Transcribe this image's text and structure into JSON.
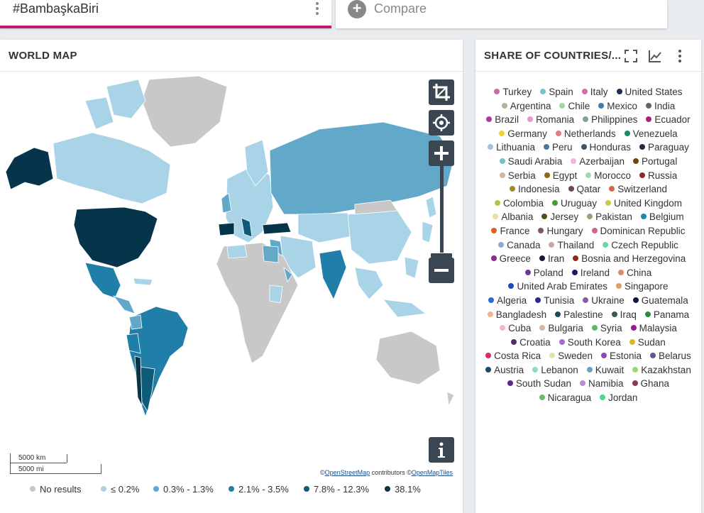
{
  "tabs": {
    "active_label": "#BambaşkaBiri",
    "compare_label": "Compare"
  },
  "map_card": {
    "title": "WORLD MAP",
    "scale_km": "5000 km",
    "scale_mi": "5000 mi",
    "attribution": {
      "osm": "OpenStreetMap",
      "contributors": " contributors ",
      "tiles": "OpenMapTiles"
    },
    "legend": [
      {
        "label": "No results",
        "color": "#c8c8c8"
      },
      {
        "label": "≤ 0.2%",
        "color": "#a9d3e6"
      },
      {
        "label": "0.3% - 1.3%",
        "color": "#62a9c9"
      },
      {
        "label": "2.1% - 3.5%",
        "color": "#1f7fa8"
      },
      {
        "label": "7.8% - 12.3%",
        "color": "#0d5b79"
      },
      {
        "label": "38.1%",
        "color": "#06344a"
      }
    ]
  },
  "share_card": {
    "title": "SHARE OF COUNTRIES/...",
    "countries": [
      {
        "name": "Turkey",
        "color": "#c76b9e"
      },
      {
        "name": "Spain",
        "color": "#7bbfd6"
      },
      {
        "name": "Italy",
        "color": "#d96ba6"
      },
      {
        "name": "United States",
        "color": "#1d2d52"
      },
      {
        "name": "Argentina",
        "color": "#a8b9a0"
      },
      {
        "name": "Chile",
        "color": "#a5d6a0"
      },
      {
        "name": "Mexico",
        "color": "#3d7aa8"
      },
      {
        "name": "India",
        "color": "#666666"
      },
      {
        "name": "Brazil",
        "color": "#b03aa0"
      },
      {
        "name": "Romania",
        "color": "#e29ac6"
      },
      {
        "name": "Philippines",
        "color": "#7ba39a"
      },
      {
        "name": "Ecuador",
        "color": "#a8247a"
      },
      {
        "name": "Germany",
        "color": "#f2d230"
      },
      {
        "name": "Netherlands",
        "color": "#e07c7c"
      },
      {
        "name": "Venezuela",
        "color": "#1f8a6a"
      },
      {
        "name": "Lithuania",
        "color": "#a7c0d8"
      },
      {
        "name": "Peru",
        "color": "#4f7596"
      },
      {
        "name": "Honduras",
        "color": "#3d5566"
      },
      {
        "name": "Paraguay",
        "color": "#2e2440"
      },
      {
        "name": "Saudi Arabia",
        "color": "#79c2c0"
      },
      {
        "name": "Azerbaijan",
        "color": "#f2b5d8"
      },
      {
        "name": "Portugal",
        "color": "#6b4a10"
      },
      {
        "name": "Serbia",
        "color": "#c9b89a"
      },
      {
        "name": "Egypt",
        "color": "#8a6a1a"
      },
      {
        "name": "Morocco",
        "color": "#9fd9b5"
      },
      {
        "name": "Russia",
        "color": "#8a2a2a"
      },
      {
        "name": "Indonesia",
        "color": "#a08a2a"
      },
      {
        "name": "Qatar",
        "color": "#6a4a5a"
      },
      {
        "name": "Switzerland",
        "color": "#d06a4a"
      },
      {
        "name": "Colombia",
        "color": "#b8c24a"
      },
      {
        "name": "Uruguay",
        "color": "#4a9a3a"
      },
      {
        "name": "United Kingdom",
        "color": "#c9c94a"
      },
      {
        "name": "Albania",
        "color": "#f2d9a8"
      },
      {
        "name": "Jersey",
        "color": "#5a4a1a"
      },
      {
        "name": "Pakistan",
        "color": "#9aa07a"
      },
      {
        "name": "Belgium",
        "color": "#1a8aa8"
      },
      {
        "name": "France",
        "color": "#d9602a"
      },
      {
        "name": "Hungary",
        "color": "#7a5a5a"
      },
      {
        "name": "Dominican Republic",
        "color": "#c96a8a"
      },
      {
        "name": "Canada",
        "color": "#8aaad9"
      },
      {
        "name": "Thailand",
        "color": "#c9a8a0"
      },
      {
        "name": "Czech Republic",
        "color": "#6ad9a0"
      },
      {
        "name": "Greece",
        "color": "#8a2a8a"
      },
      {
        "name": "Iran",
        "color": "#1a1a3a"
      },
      {
        "name": "Bosnia and Herzegovina",
        "color": "#8a2a1a"
      },
      {
        "name": "Poland",
        "color": "#6a3a9a"
      },
      {
        "name": "Ireland",
        "color": "#1a1a6a"
      },
      {
        "name": "China",
        "color": "#e08a6a"
      },
      {
        "name": "United Arab Emirates",
        "color": "#1a4ab8"
      },
      {
        "name": "Singapore",
        "color": "#d9a06a"
      },
      {
        "name": "Algeria",
        "color": "#2a6ad9"
      },
      {
        "name": "Tunisia",
        "color": "#2a2a8a"
      },
      {
        "name": "Ukraine",
        "color": "#8a5aa8"
      },
      {
        "name": "Guatemala",
        "color": "#0a1a3a"
      },
      {
        "name": "Bangladesh",
        "color": "#f2b58a"
      },
      {
        "name": "Palestine",
        "color": "#1a4a5a"
      },
      {
        "name": "Iraq",
        "color": "#3a5a4a"
      },
      {
        "name": "Panama",
        "color": "#2a8a3a"
      },
      {
        "name": "Cuba",
        "color": "#f2b5d0"
      },
      {
        "name": "Bulgaria",
        "color": "#d9b5a8"
      },
      {
        "name": "Syria",
        "color": "#5ab86a"
      },
      {
        "name": "Malaysia",
        "color": "#9a1a8a"
      },
      {
        "name": "Croatia",
        "color": "#5a2a6a"
      },
      {
        "name": "South Korea",
        "color": "#a86ad9"
      },
      {
        "name": "Sudan",
        "color": "#d9b82a"
      },
      {
        "name": "Costa Rica",
        "color": "#d92a6a"
      },
      {
        "name": "Sweden",
        "color": "#d9e8a8"
      },
      {
        "name": "Estonia",
        "color": "#8a4ab8"
      },
      {
        "name": "Belarus",
        "color": "#5a5a9a"
      },
      {
        "name": "Austria",
        "color": "#1a4a6a"
      },
      {
        "name": "Lebanon",
        "color": "#8ad9c9"
      },
      {
        "name": "Kuwait",
        "color": "#6aa0c0"
      },
      {
        "name": "Kazakhstan",
        "color": "#9ad96a"
      },
      {
        "name": "South Sudan",
        "color": "#5a2a8a"
      },
      {
        "name": "Namibia",
        "color": "#b88ad9"
      },
      {
        "name": "Ghana",
        "color": "#8a3a4a"
      },
      {
        "name": "Nicaragua",
        "color": "#6ab86a"
      },
      {
        "name": "Jordan",
        "color": "#4ad98a"
      }
    ]
  }
}
